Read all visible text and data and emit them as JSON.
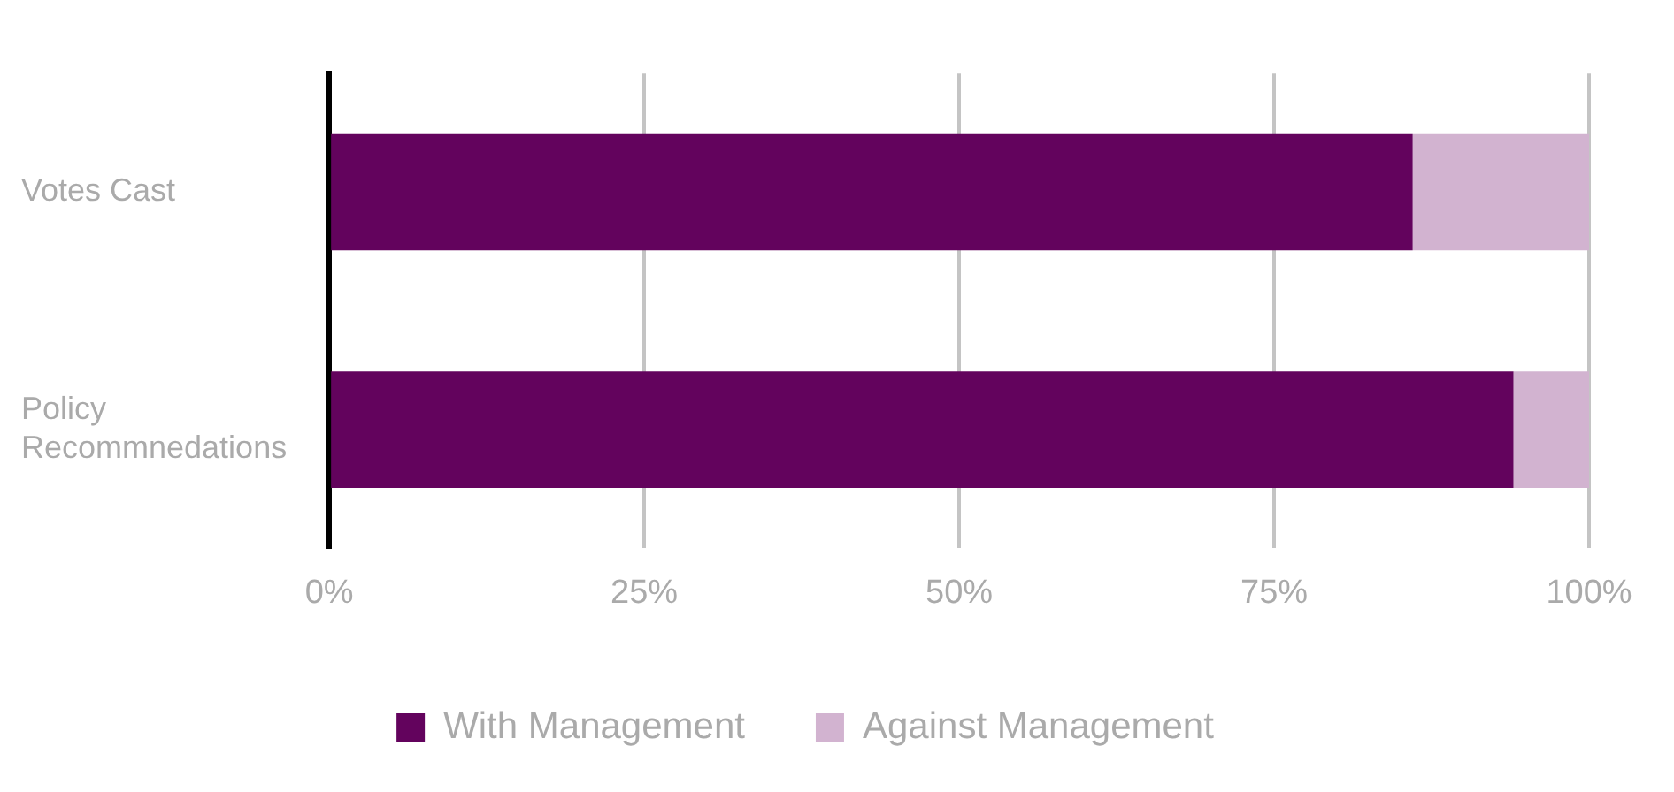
{
  "chart_data": {
    "type": "bar",
    "orientation": "horizontal",
    "stacked": true,
    "categories": [
      "Votes Cast",
      "Policy Recommnedations"
    ],
    "series": [
      {
        "name": "With Management",
        "color": "#63035d",
        "values": [
          86,
          94
        ]
      },
      {
        "name": "Against Management",
        "color": "#d2b3d0",
        "values": [
          14,
          6
        ]
      }
    ],
    "xlim": [
      0,
      100
    ],
    "xticks": [
      {
        "value": 0,
        "label": "0%"
      },
      {
        "value": 25,
        "label": "25%"
      },
      {
        "value": 50,
        "label": "50%"
      },
      {
        "value": 75,
        "label": "75%"
      },
      {
        "value": 100,
        "label": "100%"
      }
    ],
    "grid": "x",
    "legend": "bottom"
  }
}
